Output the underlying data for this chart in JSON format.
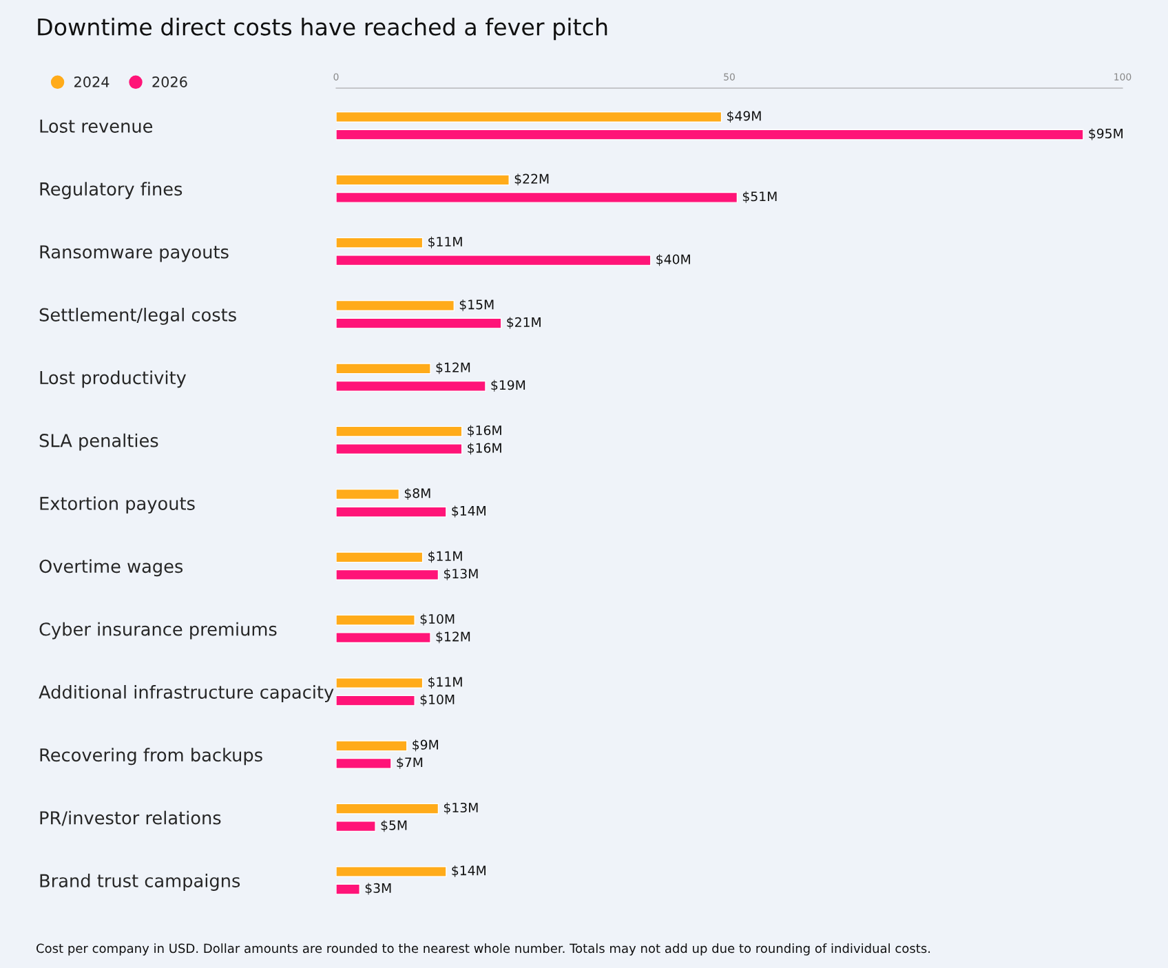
{
  "chart_data": {
    "type": "bar",
    "orientation": "horizontal",
    "title": "Downtime direct costs have reached a fever pitch",
    "categories": [
      "Lost revenue",
      "Regulatory fines",
      "Ransomware payouts",
      "Settlement/legal costs",
      "Lost productivity",
      "SLA penalties",
      "Extortion payouts",
      "Overtime wages",
      "Cyber insurance premiums",
      "Additional infrastructure capacity",
      "Recovering from backups",
      "PR/investor relations",
      "Brand trust campaigns"
    ],
    "series": [
      {
        "name": "2024",
        "color": "#ffab1a",
        "values": [
          49,
          22,
          11,
          15,
          12,
          16,
          8,
          11,
          10,
          11,
          9,
          13,
          14
        ],
        "value_labels": [
          "$49M",
          "$22M",
          "$11M",
          "$15M",
          "$12M",
          "$16M",
          "$8M",
          "$11M",
          "$10M",
          "$11M",
          "$9M",
          "$13M",
          "$14M"
        ]
      },
      {
        "name": "2026",
        "color": "#ff1478",
        "values": [
          95,
          51,
          40,
          21,
          19,
          16,
          14,
          13,
          12,
          10,
          7,
          5,
          3
        ],
        "value_labels": [
          "$95M",
          "$51M",
          "$40M",
          "$21M",
          "$19M",
          "$16M",
          "$14M",
          "$13M",
          "$12M",
          "$10M",
          "$7M",
          "$5M",
          "$3M"
        ]
      }
    ],
    "xlim": [
      0,
      100
    ],
    "xticks": [
      0,
      50,
      100
    ],
    "grid": false,
    "legend": "top left",
    "annotations": [
      "Cost per company in USD. Dollar amounts are rounded to the nearest whole number. Totals may not add up due to rounding of individual costs."
    ]
  }
}
